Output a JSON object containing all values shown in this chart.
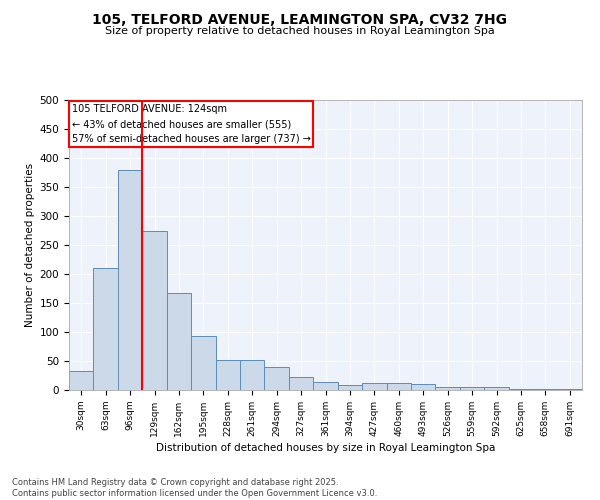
{
  "title": "105, TELFORD AVENUE, LEAMINGTON SPA, CV32 7HG",
  "subtitle": "Size of property relative to detached houses in Royal Leamington Spa",
  "xlabel": "Distribution of detached houses by size in Royal Leamington Spa",
  "ylabel": "Number of detached properties",
  "footer": "Contains HM Land Registry data © Crown copyright and database right 2025.\nContains public sector information licensed under the Open Government Licence v3.0.",
  "bin_labels": [
    "30sqm",
    "63sqm",
    "96sqm",
    "129sqm",
    "162sqm",
    "195sqm",
    "228sqm",
    "261sqm",
    "294sqm",
    "327sqm",
    "361sqm",
    "394sqm",
    "427sqm",
    "460sqm",
    "493sqm",
    "526sqm",
    "559sqm",
    "592sqm",
    "625sqm",
    "658sqm",
    "691sqm"
  ],
  "bar_values": [
    33,
    210,
    380,
    275,
    168,
    93,
    52,
    52,
    40,
    22,
    13,
    8,
    12,
    12,
    10,
    5,
    5,
    6,
    2,
    2,
    2
  ],
  "bar_color": "#ccd9e8",
  "bar_edge_color": "#5b8db8",
  "annotation_title": "105 TELFORD AVENUE: 124sqm",
  "annotation_line1": "← 43% of detached houses are smaller (555)",
  "annotation_line2": "57% of semi-detached houses are larger (737) →",
  "vline_color": "red",
  "ylim": [
    0,
    500
  ],
  "yticks": [
    0,
    50,
    100,
    150,
    200,
    250,
    300,
    350,
    400,
    450,
    500
  ],
  "background_color": "#eef2fb",
  "grid_color": "#ffffff"
}
